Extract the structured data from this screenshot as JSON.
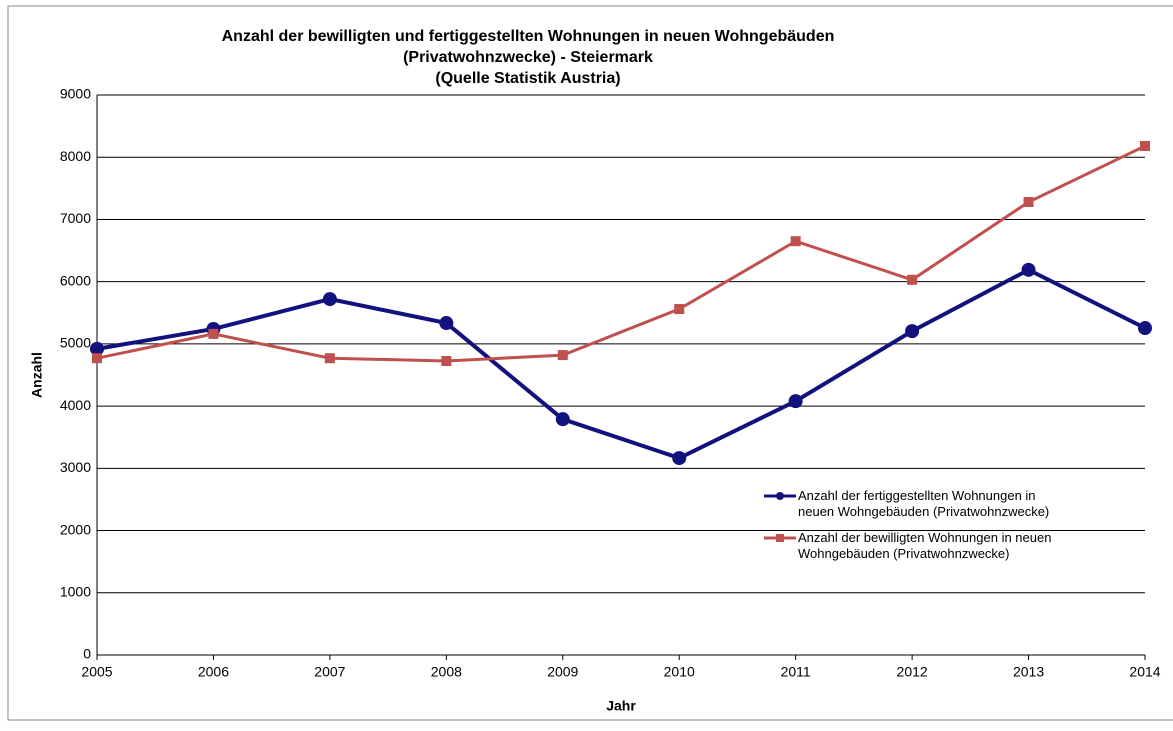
{
  "chart_data": {
    "type": "line",
    "title": [
      "Anzahl der bewilligten und fertiggestellten Wohnungen in neuen Wohngebäuden",
      "(Privatwohnzwecke) - Steiermark",
      "(Quelle Statistik Austria)"
    ],
    "x_label": "Jahr",
    "y_label": "Anzahl",
    "x": [
      2005,
      2006,
      2007,
      2008,
      2009,
      2010,
      2011,
      2012,
      2013,
      2014
    ],
    "series": [
      {
        "name": "Anzahl der fertiggestellten Wohnungen in neuen Wohngebäuden (Privatwohnzwecke)",
        "color": "#12127f",
        "marker": "circle",
        "values": [
          4920,
          5240,
          5720,
          5335,
          3790,
          3165,
          4080,
          5205,
          6190,
          5255
        ]
      },
      {
        "name": "Anzahl der bewilligten Wohnungen in neuen Wohngebäuden (Privatwohnzwecke)",
        "color": "#c0504d",
        "marker": "square",
        "values": [
          4770,
          5160,
          4770,
          4725,
          4820,
          5560,
          6650,
          6030,
          7280,
          8180
        ]
      }
    ],
    "xlim": [
      2005,
      2014
    ],
    "xticks": [
      2005,
      2006,
      2007,
      2008,
      2009,
      2010,
      2011,
      2012,
      2013,
      2014
    ],
    "ylim": [
      0,
      9000
    ],
    "yticks": [
      0,
      1000,
      2000,
      3000,
      4000,
      5000,
      6000,
      7000,
      8000,
      9000
    ],
    "grid": true
  }
}
